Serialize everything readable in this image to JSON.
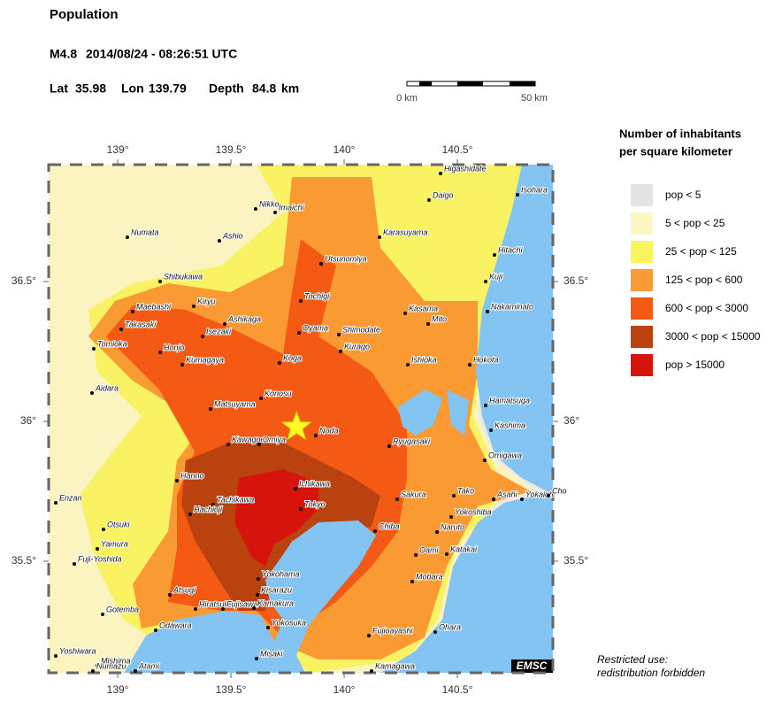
{
  "header": {
    "title": "Population",
    "magnitude": "M4.8",
    "time": "2014/08/24 - 08:26:51 UTC",
    "lat_label": "Lat",
    "lat": 35.98,
    "lon_label": "Lon",
    "lon": 139.79,
    "depth_label": "Depth",
    "depth": 84.8,
    "depth_unit": "km"
  },
  "scale_bar": {
    "start_label": "0 km",
    "end_label": "50 km"
  },
  "map": {
    "lonlim": [
      138.695,
      140.922
    ],
    "latlim": [
      35.101,
      36.918
    ],
    "lon_ticks": [
      {
        "value": 139,
        "label": "139°"
      },
      {
        "value": 139.5,
        "label": "139.5°"
      },
      {
        "value": 140,
        "label": "140°"
      },
      {
        "value": 140.5,
        "label": "140.5°"
      }
    ],
    "lat_ticks": [
      {
        "value": 36.5,
        "label": "36.5°"
      },
      {
        "value": 36,
        "label": "36°"
      },
      {
        "value": 35.5,
        "label": "35.5°"
      }
    ],
    "cities": [
      "Higashidate",
      "Daigo",
      "Isohara",
      "Nikko",
      "Imaichi",
      "Numata",
      "Ashio",
      "Karasuyama",
      "Hitachi",
      "Utsunomiya",
      "Shibukawa",
      "Kuji",
      "Maebashi",
      "Kiryu",
      "Tochigi",
      "Kasama",
      "Mito",
      "Nakaminato",
      "Takasaki",
      "Ashikaga",
      "Isezaki",
      "Oyama",
      "Shimodate",
      "Tomioka",
      "Honjo",
      "Kurago",
      "Koga",
      "Kumagaya",
      "Ishioka",
      "Hokota",
      "Aidara",
      "Konosu",
      "Hamatsuga",
      "Matsuyama",
      "Noda",
      "Kashima",
      "Kawagoe",
      "Omiya",
      "Ryugasaki",
      "Omigawa",
      "Hanno",
      "Ichikawa",
      "Enzan",
      "Tachikawa",
      "Tokyo",
      "Sakura",
      "Tako",
      "Asahi",
      "Yokaich",
      "Cho",
      "Hachioji",
      "Yokoshiba",
      "Chiba",
      "Otsuki",
      "Naruto",
      "Yamura",
      "Oami",
      "Katakai",
      "Fuji-Yoshida",
      "Yokohama",
      "Mobara",
      "Kisarazu",
      "Atsugi",
      "Hiratsuka",
      "Fujisawa",
      "Kamakura",
      "Gotemba",
      "Odawara",
      "Yokosuka",
      "Fujioayashi",
      "Ohara",
      "Yoshiwara",
      "Misaki",
      "Mishima",
      "Numazu",
      "Atami",
      "Kamagawa"
    ],
    "credit": "EMSC"
  },
  "legend": {
    "title": [
      "Number of inhabitants",
      "per square kilometer"
    ],
    "entries": [
      {
        "label": "pop < 5",
        "color": "#e4e4e4"
      },
      {
        "label": "5 < pop < 25",
        "color": "#fcf8c4"
      },
      {
        "label": "25 < pop < 125",
        "color": "#f9f55e"
      },
      {
        "label": "125 < pop < 600",
        "color": "#f99a33"
      },
      {
        "label": "600 < pop < 3000",
        "color": "#f55a15"
      },
      {
        "label": "3000 < pop < 15000",
        "color": "#b9420f"
      },
      {
        "label": "pop > 15000",
        "color": "#d6140b"
      }
    ]
  },
  "note": [
    "Restricted use:",
    "redistribution forbidden"
  ]
}
